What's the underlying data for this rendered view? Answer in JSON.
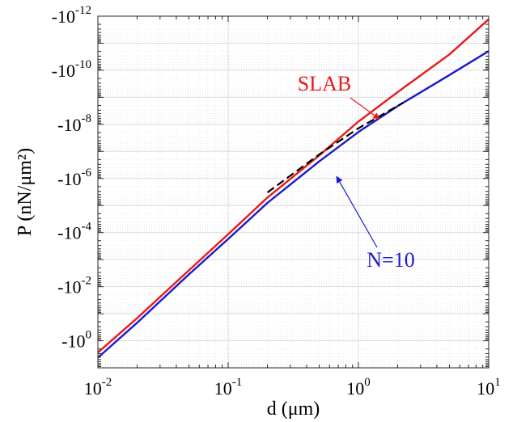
{
  "chart_data": {
    "type": "line",
    "xlabel": "d (μm)",
    "ylabel": "P (nN/μm²)",
    "x_scale": "log",
    "y_scale": "log",
    "y_direction": "negative values, magnitude decreasing upward",
    "xlim": [
      0.01,
      10
    ],
    "ylim_magnitude": [
      1e-12,
      10
    ],
    "grid": true,
    "x_ticks": [
      {
        "value": 0.01,
        "base": "10",
        "exp": "-2"
      },
      {
        "value": 0.1,
        "base": "10",
        "exp": "-1"
      },
      {
        "value": 1,
        "base": "10",
        "exp": "0"
      },
      {
        "value": 10,
        "base": "10",
        "exp": "1"
      }
    ],
    "y_ticks": [
      {
        "value": -1e-12,
        "base": "-10",
        "exp": "-12"
      },
      {
        "value": -1e-10,
        "base": "-10",
        "exp": "-10"
      },
      {
        "value": -1e-08,
        "base": "-10",
        "exp": "-8"
      },
      {
        "value": -1e-06,
        "base": "-10",
        "exp": "-6"
      },
      {
        "value": -0.0001,
        "base": "-10",
        "exp": "-4"
      },
      {
        "value": -0.01,
        "base": "-10",
        "exp": "-2"
      },
      {
        "value": -1,
        "base": "-10",
        "exp": "0"
      }
    ],
    "series": [
      {
        "name": "SLAB",
        "color": "#e8191a",
        "style": "solid",
        "x": [
          0.01,
          0.02,
          0.05,
          0.1,
          0.2,
          0.5,
          1,
          2,
          5,
          10
        ],
        "y": [
          -2.7,
          -0.1455,
          -0.00248,
          -0.000116,
          -5.1e-06,
          -1.41e-07,
          -7.9e-09,
          -6.4e-10,
          -2.6e-11,
          -1.3e-12
        ]
      },
      {
        "name": "N=10",
        "color": "#1a1acc",
        "style": "solid",
        "x": [
          0.01,
          0.02,
          0.05,
          0.1,
          0.2,
          0.5,
          1,
          2,
          5,
          10
        ],
        "y": [
          -4.2,
          -0.2146,
          -0.00352,
          -0.000172,
          -8e-06,
          -2.35e-07,
          -1.92e-08,
          -2.1e-09,
          -1.5e-10,
          -1.95e-11
        ]
      },
      {
        "name": "",
        "color": "#000000",
        "style": "dashed",
        "x": [
          0.2,
          0.5,
          1,
          2.2
        ],
        "y": [
          -3.3e-06,
          -1.3e-07,
          -1.4e-08,
          -1.6e-09
        ]
      }
    ],
    "annotations": [
      {
        "text": "SLAB",
        "color": "#e8191a",
        "arrow_to": {
          "x": 1.45,
          "y": -6.3e-09
        }
      },
      {
        "text": "N=10",
        "color": "#1a1acc",
        "arrow_to": {
          "x": 0.68,
          "y": -8.5e-07
        }
      }
    ]
  }
}
